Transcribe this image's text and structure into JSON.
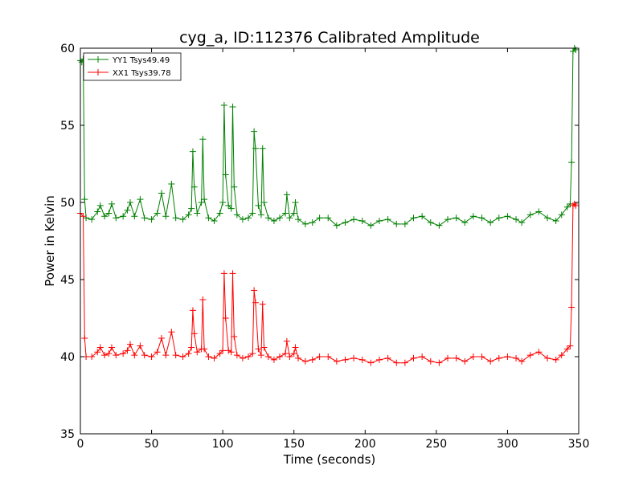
{
  "chart_data": {
    "type": "line",
    "title": "cyg_a, ID:112376 Calibrated Amplitude",
    "xlabel": "Time (seconds)",
    "ylabel": "Power in Kelvin",
    "xlim": [
      0,
      350
    ],
    "ylim": [
      35,
      60
    ],
    "xticks": [
      0,
      50,
      100,
      150,
      200,
      250,
      300,
      350
    ],
    "yticks": [
      35,
      40,
      45,
      50,
      55,
      60
    ],
    "grid": false,
    "legend": "top-left",
    "marker": "+",
    "series": [
      {
        "name": "YY1 Tsys49.49",
        "color": "#008000",
        "points": [
          [
            0,
            59.2
          ],
          [
            1,
            59.1
          ],
          [
            2,
            59.3
          ],
          [
            3,
            50.2
          ],
          [
            4,
            49.0
          ],
          [
            8,
            48.9
          ],
          [
            12,
            49.4
          ],
          [
            14,
            49.8
          ],
          [
            17,
            49.1
          ],
          [
            20,
            49.3
          ],
          [
            22,
            49.9
          ],
          [
            25,
            49.0
          ],
          [
            30,
            49.1
          ],
          [
            33,
            49.5
          ],
          [
            35,
            50.0
          ],
          [
            38,
            49.1
          ],
          [
            42,
            50.2
          ],
          [
            45,
            49.0
          ],
          [
            50,
            48.9
          ],
          [
            54,
            49.3
          ],
          [
            57,
            50.6
          ],
          [
            60,
            49.1
          ],
          [
            64,
            51.2
          ],
          [
            67,
            49.0
          ],
          [
            72,
            48.9
          ],
          [
            76,
            49.2
          ],
          [
            78,
            49.6
          ],
          [
            79,
            53.3
          ],
          [
            80,
            51.0
          ],
          [
            82,
            49.3
          ],
          [
            85,
            50.0
          ],
          [
            86,
            54.1
          ],
          [
            87,
            50.2
          ],
          [
            90,
            49.0
          ],
          [
            94,
            48.8
          ],
          [
            98,
            49.3
          ],
          [
            100,
            50.0
          ],
          [
            101,
            56.3
          ],
          [
            102,
            51.8
          ],
          [
            104,
            49.8
          ],
          [
            106,
            49.6
          ],
          [
            107,
            56.2
          ],
          [
            108,
            51.0
          ],
          [
            110,
            49.2
          ],
          [
            114,
            48.9
          ],
          [
            118,
            49.0
          ],
          [
            121,
            49.3
          ],
          [
            122,
            54.6
          ],
          [
            123,
            53.5
          ],
          [
            125,
            49.8
          ],
          [
            127,
            49.2
          ],
          [
            128,
            53.5
          ],
          [
            129,
            50.0
          ],
          [
            132,
            49.0
          ],
          [
            136,
            48.8
          ],
          [
            140,
            49.0
          ],
          [
            144,
            49.3
          ],
          [
            145,
            50.5
          ],
          [
            147,
            49.0
          ],
          [
            150,
            49.3
          ],
          [
            151,
            50.0
          ],
          [
            153,
            48.9
          ],
          [
            158,
            48.6
          ],
          [
            163,
            48.7
          ],
          [
            168,
            49.0
          ],
          [
            174,
            49.0
          ],
          [
            180,
            48.5
          ],
          [
            186,
            48.7
          ],
          [
            192,
            48.9
          ],
          [
            198,
            48.8
          ],
          [
            204,
            48.5
          ],
          [
            210,
            48.8
          ],
          [
            216,
            48.9
          ],
          [
            222,
            48.6
          ],
          [
            228,
            48.6
          ],
          [
            234,
            49.0
          ],
          [
            240,
            49.1
          ],
          [
            246,
            48.7
          ],
          [
            252,
            48.5
          ],
          [
            258,
            48.9
          ],
          [
            264,
            49.0
          ],
          [
            270,
            48.7
          ],
          [
            276,
            49.1
          ],
          [
            282,
            49.0
          ],
          [
            288,
            48.7
          ],
          [
            294,
            49.0
          ],
          [
            300,
            49.1
          ],
          [
            306,
            48.9
          ],
          [
            310,
            48.7
          ],
          [
            316,
            49.2
          ],
          [
            322,
            49.4
          ],
          [
            328,
            49.0
          ],
          [
            334,
            48.8
          ],
          [
            338,
            49.2
          ],
          [
            342,
            49.7
          ],
          [
            344,
            49.9
          ],
          [
            345,
            52.6
          ],
          [
            346,
            59.8
          ],
          [
            347,
            60.0
          ],
          [
            348,
            59.9
          ]
        ]
      },
      {
        "name": "XX1 Tsys39.78",
        "color": "#ff0000",
        "points": [
          [
            0,
            49.3
          ],
          [
            2,
            49.1
          ],
          [
            3,
            41.2
          ],
          [
            4,
            40.0
          ],
          [
            8,
            40.0
          ],
          [
            12,
            40.3
          ],
          [
            14,
            40.6
          ],
          [
            17,
            40.1
          ],
          [
            20,
            40.2
          ],
          [
            22,
            40.6
          ],
          [
            25,
            40.1
          ],
          [
            30,
            40.2
          ],
          [
            33,
            40.4
          ],
          [
            35,
            40.8
          ],
          [
            38,
            40.1
          ],
          [
            42,
            40.7
          ],
          [
            45,
            40.1
          ],
          [
            50,
            40.0
          ],
          [
            54,
            40.3
          ],
          [
            57,
            41.2
          ],
          [
            60,
            40.1
          ],
          [
            64,
            41.6
          ],
          [
            67,
            40.1
          ],
          [
            72,
            40.0
          ],
          [
            76,
            40.2
          ],
          [
            78,
            40.6
          ],
          [
            79,
            43.0
          ],
          [
            80,
            41.5
          ],
          [
            82,
            40.3
          ],
          [
            85,
            40.5
          ],
          [
            86,
            43.7
          ],
          [
            87,
            40.5
          ],
          [
            90,
            40.0
          ],
          [
            94,
            39.9
          ],
          [
            98,
            40.2
          ],
          [
            100,
            40.4
          ],
          [
            101,
            45.4
          ],
          [
            102,
            42.5
          ],
          [
            104,
            40.4
          ],
          [
            106,
            40.3
          ],
          [
            107,
            45.4
          ],
          [
            108,
            41.3
          ],
          [
            110,
            40.1
          ],
          [
            114,
            39.9
          ],
          [
            118,
            40.0
          ],
          [
            121,
            40.2
          ],
          [
            122,
            44.3
          ],
          [
            123,
            43.5
          ],
          [
            125,
            40.5
          ],
          [
            127,
            40.1
          ],
          [
            128,
            43.4
          ],
          [
            129,
            40.6
          ],
          [
            132,
            40.0
          ],
          [
            136,
            39.8
          ],
          [
            140,
            40.0
          ],
          [
            144,
            40.2
          ],
          [
            145,
            41.0
          ],
          [
            147,
            40.0
          ],
          [
            150,
            40.2
          ],
          [
            151,
            40.6
          ],
          [
            153,
            39.9
          ],
          [
            158,
            39.7
          ],
          [
            163,
            39.8
          ],
          [
            168,
            40.0
          ],
          [
            174,
            40.0
          ],
          [
            180,
            39.7
          ],
          [
            186,
            39.8
          ],
          [
            192,
            39.9
          ],
          [
            198,
            39.8
          ],
          [
            204,
            39.6
          ],
          [
            210,
            39.8
          ],
          [
            216,
            39.9
          ],
          [
            222,
            39.6
          ],
          [
            228,
            39.6
          ],
          [
            234,
            39.9
          ],
          [
            240,
            40.0
          ],
          [
            246,
            39.7
          ],
          [
            252,
            39.6
          ],
          [
            258,
            39.9
          ],
          [
            264,
            39.9
          ],
          [
            270,
            39.7
          ],
          [
            276,
            40.0
          ],
          [
            282,
            40.0
          ],
          [
            288,
            39.7
          ],
          [
            294,
            39.9
          ],
          [
            300,
            40.0
          ],
          [
            306,
            39.9
          ],
          [
            310,
            39.7
          ],
          [
            316,
            40.1
          ],
          [
            322,
            40.3
          ],
          [
            328,
            39.9
          ],
          [
            334,
            39.8
          ],
          [
            338,
            40.1
          ],
          [
            342,
            40.5
          ],
          [
            344,
            40.7
          ],
          [
            345,
            43.2
          ],
          [
            346,
            49.8
          ],
          [
            347,
            49.9
          ],
          [
            348,
            49.8
          ]
        ]
      }
    ]
  }
}
